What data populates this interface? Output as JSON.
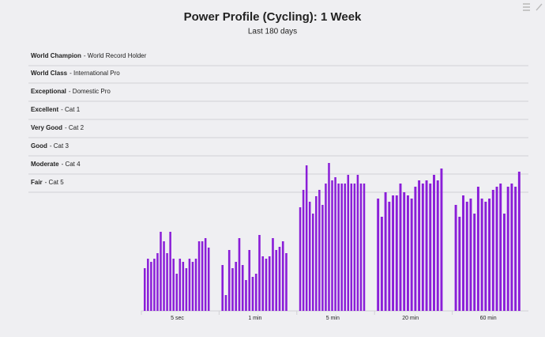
{
  "chart_data": {
    "type": "bar",
    "title": "Power Profile (Cycling): 1 Week",
    "subtitle": "Last 180 days",
    "color": "#8a1ed8",
    "ylim": [
      0,
      330
    ],
    "levels": [
      {
        "name": "World Champion",
        "description": "- World Record Holder",
        "value": 310
      },
      {
        "name": "World Class",
        "description": "- International Pro",
        "value": 288
      },
      {
        "name": "Exceptional",
        "description": "- Domestic Pro",
        "value": 265
      },
      {
        "name": "Excellent",
        "description": "- Cat 1",
        "value": 242
      },
      {
        "name": "Very Good",
        "description": "- Cat 2",
        "value": 219
      },
      {
        "name": "Good",
        "description": "- Cat 3",
        "value": 196
      },
      {
        "name": "Moderate",
        "description": "- Cat 4",
        "value": 173
      },
      {
        "name": "Fair",
        "description": "- Cat 5",
        "value": 150
      }
    ],
    "categories": [
      "5 sec",
      "1 min",
      "5 min",
      "20 min",
      "60 min"
    ],
    "values": [
      [
        54,
        66,
        62,
        66,
        73,
        100,
        88,
        73,
        100,
        66,
        47,
        66,
        62,
        54,
        66,
        62,
        66,
        88,
        88,
        92,
        80
      ],
      [
        58,
        20,
        77,
        54,
        62,
        92,
        58,
        39,
        77,
        43,
        47,
        96,
        69,
        66,
        69,
        92,
        77,
        81,
        88,
        73
      ],
      [
        131,
        153,
        184,
        138,
        123,
        145,
        153,
        134,
        161,
        187,
        165,
        169,
        161,
        161,
        161,
        172,
        161,
        161,
        172,
        161,
        161
      ],
      [
        142,
        119,
        150,
        138,
        146,
        146,
        161,
        150,
        146,
        142,
        157,
        165,
        161,
        165,
        161,
        172,
        165,
        180
      ],
      [
        134,
        119,
        146,
        138,
        142,
        123,
        157,
        142,
        138,
        142,
        153,
        157,
        161,
        123,
        157,
        161,
        157,
        176
      ]
    ]
  }
}
